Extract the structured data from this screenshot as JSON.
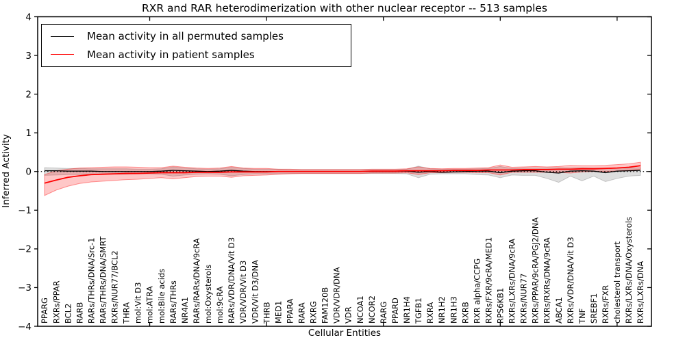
{
  "figure": {
    "title": "RXR and RAR heterodimerization with other nuclear receptor -- 513 samples",
    "xlabel": "Cellular Entities",
    "ylabel": "Inferred Activity",
    "legend": [
      {
        "label": "Mean activity in all permuted samples",
        "color": "#000000"
      },
      {
        "label": "Mean activity in patient samples",
        "color": "#ff0000"
      }
    ]
  },
  "chart_data": {
    "type": "line",
    "title": "RXR and RAR heterodimerization with other nuclear receptor -- 513 samples",
    "xlabel": "Cellular Entities",
    "ylabel": "Inferred Activity",
    "ylim": [
      -4,
      4
    ],
    "yticks": [
      -4,
      -3,
      -2,
      -1,
      0,
      1,
      2,
      3,
      4
    ],
    "x_major_tick_indices": [
      9,
      19,
      29,
      39,
      49
    ],
    "grid": false,
    "legend_position": "upper left",
    "zero_reference_line": {
      "style": "dotted",
      "color": "#000000",
      "y": 0
    },
    "categories": [
      "PPARG",
      "RXRs/PPAR",
      "BCL2",
      "RARB",
      "RARs/THRs/DNA/Src-1",
      "RARs/THRs/DNA/SMRT",
      "RXRs/NUR77/BCL2",
      "THRA",
      "mol:Vit D3",
      "mol:ATRA",
      "mol:Bile acids",
      "RARs/THRs",
      "NR4A1",
      "RARs/RARs/DNA/9cRA",
      "mol:Oxysterols",
      "mol:9cRA",
      "RARs/VDR/DNA/Vit D3",
      "VDR/VDR/Vit D3",
      "VDR/Vit D3/DNA",
      "THRB",
      "MED1",
      "PPARA",
      "RARA",
      "RXRG",
      "FAM120B",
      "VDR/VDR/DNA",
      "VDR",
      "NCOA1",
      "NCOR2",
      "RARG",
      "PPARD",
      "NR1H4",
      "TGFB1",
      "RXRA",
      "NR1H2",
      "NR1H3",
      "RXRB",
      "RXR alpha/CCPG",
      "RXRs/FXR/9cRA/MED1",
      "RPS6KB1",
      "RXRs/LXRs/DNA/9cRA",
      "RXRs/NUR77",
      "RXRs/PPAR/9cRA/PGJ2/DNA",
      "RXRs/RXRs/DNA/9cRA",
      "ABCA1",
      "RXRs/VDR/DNA/Vit D3",
      "TNF",
      "SREBF1",
      "RXRs/FXR",
      "cholesterol transport",
      "RXRs/LXRs/DNA/Oxysterols",
      "RXRs/LXRs/DNA"
    ],
    "series": [
      {
        "name": "Mean activity in all permuted samples",
        "color": "#000000",
        "line_width": 1.3,
        "band_fill": "rgba(0,0,0,0.13)",
        "band_edge": "rgba(0,0,0,0.18)",
        "values": [
          0.02,
          0.02,
          0.01,
          0.01,
          0.01,
          0.0,
          0.0,
          0.0,
          0.0,
          0.0,
          0.01,
          0.03,
          0.02,
          0.01,
          0.0,
          0.01,
          0.03,
          0.01,
          0.0,
          0.0,
          0.0,
          0.0,
          0.0,
          0.0,
          0.0,
          0.0,
          0.0,
          0.0,
          0.0,
          0.0,
          0.0,
          0.01,
          -0.02,
          0.0,
          -0.02,
          -0.01,
          0.0,
          0.01,
          0.01,
          -0.03,
          0.01,
          0.02,
          0.02,
          -0.02,
          -0.04,
          0.01,
          0.02,
          0.01,
          -0.03,
          0.01,
          0.02,
          0.03
        ],
        "band_upper": [
          0.1,
          0.09,
          0.08,
          0.08,
          0.07,
          0.07,
          0.07,
          0.07,
          0.06,
          0.06,
          0.07,
          0.12,
          0.09,
          0.07,
          0.06,
          0.07,
          0.11,
          0.08,
          0.06,
          0.06,
          0.06,
          0.05,
          0.05,
          0.05,
          0.05,
          0.05,
          0.05,
          0.05,
          0.05,
          0.05,
          0.05,
          0.06,
          0.14,
          0.07,
          0.06,
          0.06,
          0.06,
          0.07,
          0.08,
          0.13,
          0.08,
          0.09,
          0.09,
          0.09,
          0.1,
          0.09,
          0.1,
          0.09,
          0.09,
          0.09,
          0.09,
          0.1
        ],
        "band_lower": [
          -0.1,
          -0.09,
          -0.08,
          -0.08,
          -0.07,
          -0.07,
          -0.07,
          -0.07,
          -0.06,
          -0.06,
          -0.07,
          -0.12,
          -0.09,
          -0.07,
          -0.06,
          -0.07,
          -0.11,
          -0.08,
          -0.06,
          -0.06,
          -0.06,
          -0.05,
          -0.05,
          -0.05,
          -0.05,
          -0.05,
          -0.05,
          -0.05,
          -0.05,
          -0.05,
          -0.05,
          -0.06,
          -0.16,
          -0.07,
          -0.06,
          -0.06,
          -0.06,
          -0.08,
          -0.09,
          -0.16,
          -0.09,
          -0.1,
          -0.1,
          -0.18,
          -0.28,
          -0.12,
          -0.24,
          -0.12,
          -0.26,
          -0.18,
          -0.12,
          -0.1
        ]
      },
      {
        "name": "Mean activity in patient samples",
        "color": "#ff0000",
        "line_width": 1.8,
        "band_fill": "rgba(255,0,0,0.22)",
        "band_edge": "rgba(255,0,0,0.40)",
        "values": [
          -0.3,
          -0.22,
          -0.15,
          -0.11,
          -0.08,
          -0.07,
          -0.06,
          -0.05,
          -0.05,
          -0.04,
          -0.03,
          -0.03,
          -0.03,
          -0.02,
          -0.02,
          -0.02,
          -0.01,
          -0.01,
          -0.01,
          -0.01,
          0.0,
          0.0,
          0.0,
          0.0,
          0.0,
          0.0,
          0.0,
          0.0,
          0.01,
          0.01,
          0.01,
          0.02,
          0.02,
          0.02,
          0.02,
          0.03,
          0.03,
          0.03,
          0.04,
          0.04,
          0.04,
          0.05,
          0.05,
          0.05,
          0.06,
          0.06,
          0.07,
          0.07,
          0.08,
          0.09,
          0.11,
          0.15
        ],
        "band_upper": [
          -0.08,
          0.02,
          0.06,
          0.09,
          0.1,
          0.11,
          0.12,
          0.12,
          0.11,
          0.1,
          0.1,
          0.14,
          0.11,
          0.09,
          0.08,
          0.09,
          0.13,
          0.09,
          0.08,
          0.08,
          0.06,
          0.06,
          0.05,
          0.05,
          0.05,
          0.05,
          0.05,
          0.05,
          0.06,
          0.06,
          0.06,
          0.07,
          0.12,
          0.08,
          0.07,
          0.08,
          0.08,
          0.09,
          0.1,
          0.17,
          0.11,
          0.12,
          0.13,
          0.12,
          0.13,
          0.16,
          0.15,
          0.15,
          0.16,
          0.18,
          0.2,
          0.24
        ],
        "band_lower": [
          -0.62,
          -0.48,
          -0.38,
          -0.31,
          -0.27,
          -0.25,
          -0.23,
          -0.21,
          -0.2,
          -0.18,
          -0.16,
          -0.19,
          -0.16,
          -0.13,
          -0.12,
          -0.12,
          -0.15,
          -0.11,
          -0.1,
          -0.09,
          -0.07,
          -0.06,
          -0.05,
          -0.05,
          -0.05,
          -0.05,
          -0.05,
          -0.05,
          -0.04,
          -0.04,
          -0.04,
          -0.03,
          -0.08,
          -0.03,
          -0.03,
          -0.02,
          -0.02,
          -0.03,
          -0.03,
          -0.09,
          -0.02,
          -0.02,
          -0.02,
          -0.02,
          -0.02,
          -0.04,
          -0.01,
          0.0,
          0.0,
          0.01,
          0.03,
          0.06
        ]
      }
    ]
  }
}
